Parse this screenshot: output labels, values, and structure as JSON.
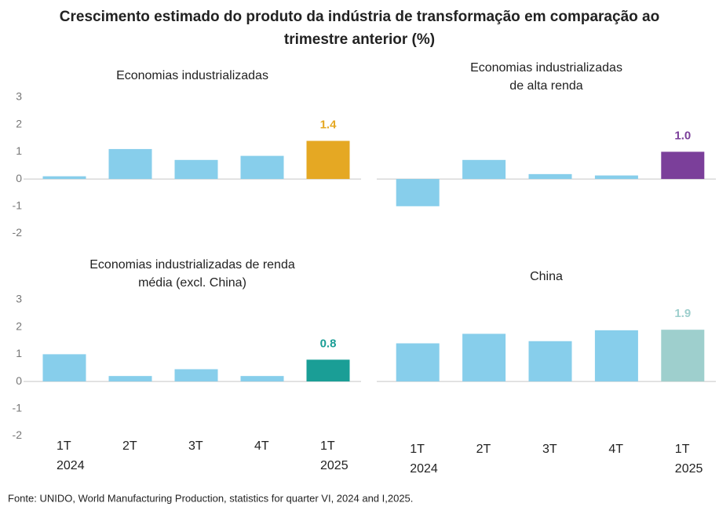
{
  "title": [
    "Crescimento estimado do produto da indústria de transformação em comparação ao",
    "trimestre anterior (%)"
  ],
  "source": "Fonte: UNIDO, World Manufacturing Production, statistics for quarter VI, 2024 and I,2025.",
  "chart_data": [
    {
      "type": "bar",
      "title": [
        "Economias industrializadas"
      ],
      "categories": [
        [
          "1T",
          "2024"
        ],
        [
          "2T"
        ],
        [
          "3T"
        ],
        [
          "4T"
        ],
        [
          "1T",
          "2025"
        ]
      ],
      "values": [
        0.1,
        1.1,
        0.7,
        0.85,
        1.4
      ],
      "value_labels": [
        null,
        null,
        null,
        null,
        "1.4"
      ],
      "colors": [
        "#87ceeb",
        "#87ceeb",
        "#87ceeb",
        "#87ceeb",
        "#e5a823"
      ],
      "ylim": [
        -2,
        3
      ],
      "yticks": [
        -2,
        -1,
        0,
        1,
        2,
        3
      ]
    },
    {
      "type": "bar",
      "title": [
        "Economias industrializadas",
        "de alta renda"
      ],
      "categories": [
        [
          "1T",
          "2024"
        ],
        [
          "2T"
        ],
        [
          "3T"
        ],
        [
          "4T"
        ],
        [
          "1T",
          "2025"
        ]
      ],
      "values": [
        -1.0,
        0.7,
        0.18,
        0.13,
        1.0
      ],
      "value_labels": [
        null,
        null,
        null,
        null,
        "1.0"
      ],
      "colors": [
        "#87ceeb",
        "#87ceeb",
        "#87ceeb",
        "#87ceeb",
        "#7b3f9a"
      ],
      "ylim": [
        -2,
        3
      ]
    },
    {
      "type": "bar",
      "title": [
        "Economias industrializadas de renda",
        "média (excl. China)"
      ],
      "categories": [
        [
          "1T",
          "2024"
        ],
        [
          "2T"
        ],
        [
          "3T"
        ],
        [
          "4T"
        ],
        [
          "1T",
          "2025"
        ]
      ],
      "values": [
        1.0,
        0.2,
        0.45,
        0.2,
        0.8
      ],
      "value_labels": [
        null,
        null,
        null,
        null,
        "0.8"
      ],
      "colors": [
        "#87ceeb",
        "#87ceeb",
        "#87ceeb",
        "#87ceeb",
        "#1a9e96"
      ],
      "ylim": [
        -2,
        3
      ],
      "yticks": [
        -2,
        -1,
        0,
        1,
        2,
        3
      ]
    },
    {
      "type": "bar",
      "title": [
        "China"
      ],
      "categories": [
        [
          "1T",
          "2024"
        ],
        [
          "2T"
        ],
        [
          "3T"
        ],
        [
          "4T"
        ],
        [
          "1T",
          "2025"
        ]
      ],
      "values": [
        1.4,
        1.75,
        1.48,
        1.88,
        1.9
      ],
      "value_labels": [
        null,
        null,
        null,
        null,
        "1.9"
      ],
      "colors": [
        "#87ceeb",
        "#87ceeb",
        "#87ceeb",
        "#87ceeb",
        "#9ecfcd"
      ],
      "ylim": [
        -2,
        3
      ]
    }
  ]
}
